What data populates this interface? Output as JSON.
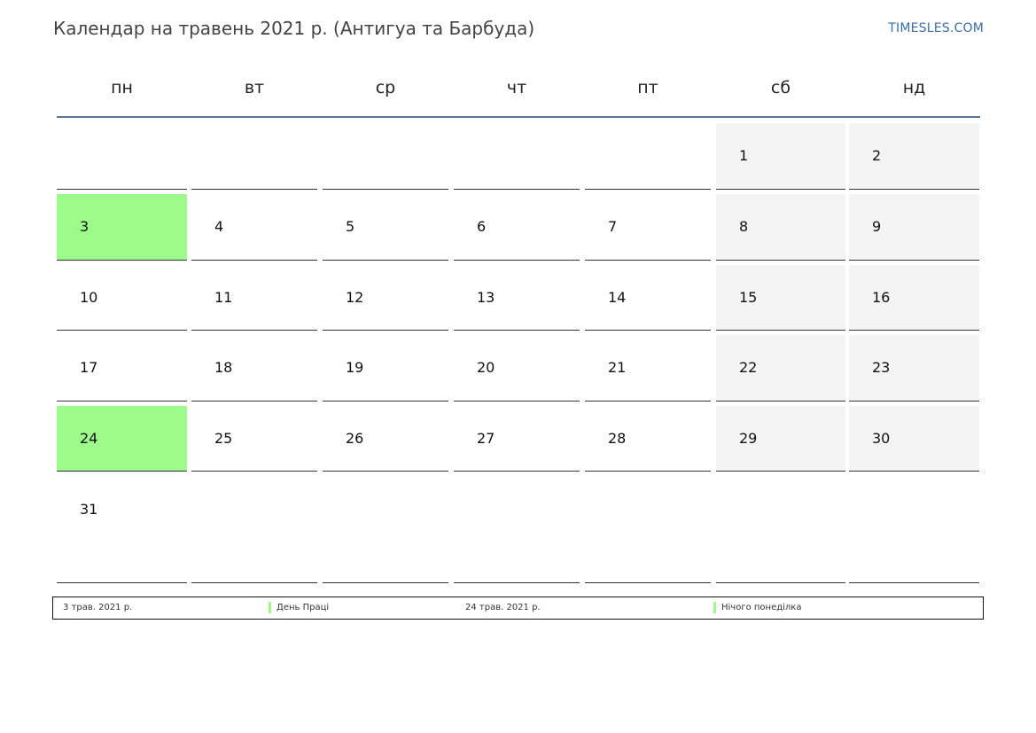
{
  "header": {
    "title": "Календар на травень 2021 р. (Антигуа та Барбуда)",
    "brand": "TIMESLES.COM"
  },
  "weekdays": [
    "пн",
    "вт",
    "ср",
    "чт",
    "пт",
    "сб",
    "нд"
  ],
  "weeks": [
    [
      "",
      "",
      "",
      "",
      "",
      "1",
      "2"
    ],
    [
      "3",
      "4",
      "5",
      "6",
      "7",
      "8",
      "9"
    ],
    [
      "10",
      "11",
      "12",
      "13",
      "14",
      "15",
      "16"
    ],
    [
      "17",
      "18",
      "19",
      "20",
      "21",
      "22",
      "23"
    ],
    [
      "24",
      "25",
      "26",
      "27",
      "28",
      "29",
      "30"
    ],
    [
      "31",
      "",
      "",
      "",
      "",
      "",
      ""
    ]
  ],
  "holidays": [
    "3",
    "24"
  ],
  "colors": {
    "holiday": "#9dfb8c",
    "weekend": "#f4f4f4",
    "header_rule": "#5a7491",
    "brand": "#3a6ea8"
  },
  "legend": [
    {
      "date": "3 трав. 2021 р.",
      "name": "День Праці"
    },
    {
      "date": "24 трав. 2021 р.",
      "name": "Нічого понеділка"
    }
  ]
}
